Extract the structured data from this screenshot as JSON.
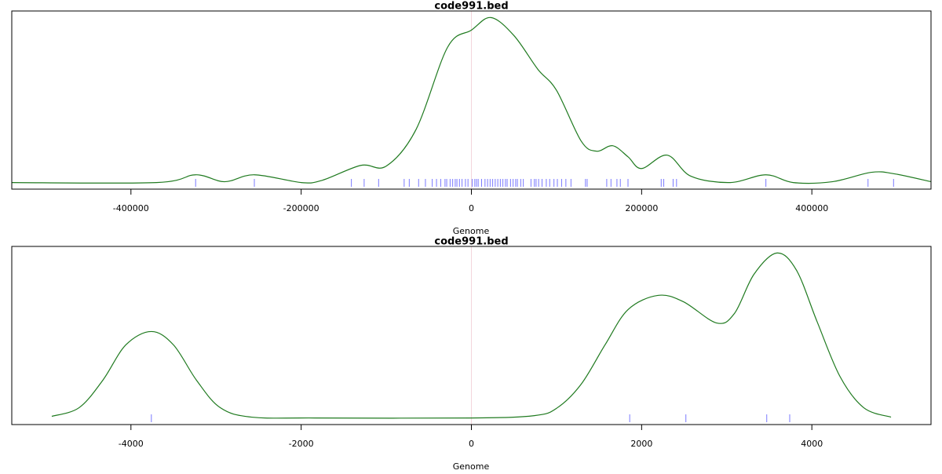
{
  "chart_data": [
    {
      "type": "density",
      "title": "code991.bed",
      "x_label": "Genome",
      "color": "#1f7a1f",
      "rug_color": "#7a7aff",
      "vline": 0,
      "xlim": [
        -540000,
        540000
      ],
      "ylim": [
        -0.04,
        1.04
      ],
      "xticks": [
        -400000,
        -200000,
        0,
        200000,
        400000
      ],
      "x": [
        -540000,
        -370000,
        -324000,
        -290000,
        -255000,
        -200000,
        -175000,
        -130000,
        -100000,
        -65000,
        -28000,
        0,
        23000,
        50000,
        78000,
        100000,
        129000,
        147000,
        166000,
        184000,
        200000,
        230000,
        258000,
        304000,
        346000,
        378000,
        424000,
        470000,
        498000,
        540000
      ],
      "values": [
        0,
        0,
        0.047,
        0.005,
        0.047,
        0,
        0.014,
        0.104,
        0.1,
        0.322,
        0.82,
        0.924,
        1,
        0.891,
        0.687,
        0.559,
        0.251,
        0.19,
        0.223,
        0.156,
        0.085,
        0.166,
        0.038,
        0,
        0.047,
        0,
        0.005,
        0.062,
        0.052,
        0.005
      ],
      "rug": [
        -324000,
        -255000,
        -141000,
        -126000,
        -109000,
        -79000,
        -73000,
        -62000,
        -54000,
        -46000,
        -41000,
        -36000,
        -31000,
        -29000,
        -25000,
        -22000,
        -19000,
        -17000,
        -14000,
        -11000,
        -7000,
        -4000,
        1000,
        4000,
        6000,
        8000,
        12000,
        16000,
        19000,
        22000,
        25000,
        28000,
        31000,
        34000,
        37000,
        40000,
        42000,
        46000,
        49000,
        52000,
        54000,
        58000,
        61000,
        70000,
        74000,
        76000,
        79000,
        83000,
        88000,
        92000,
        97000,
        101000,
        106000,
        111000,
        117000,
        134000,
        136000,
        159000,
        164000,
        171000,
        175000,
        184000,
        223000,
        226000,
        237000,
        241000,
        346000,
        466000,
        496000
      ]
    },
    {
      "type": "density",
      "title": "code991.bed",
      "x_label": "Genome",
      "color": "#1f7a1f",
      "rug_color": "#7a7aff",
      "vline": 0,
      "xlim": [
        -5400,
        5400
      ],
      "ylim": [
        -0.04,
        1.04
      ],
      "xticks": [
        -4000,
        -2000,
        0,
        2000,
        4000
      ],
      "x": [
        -4930,
        -4610,
        -4330,
        -4060,
        -3760,
        -3500,
        -3230,
        -2950,
        -2580,
        -1840,
        0,
        740,
        1010,
        1290,
        1570,
        1840,
        2190,
        2490,
        2880,
        3090,
        3320,
        3590,
        3820,
        4060,
        4330,
        4610,
        4930
      ],
      "values": [
        0.01,
        0.062,
        0.229,
        0.443,
        0.524,
        0.443,
        0.229,
        0.062,
        0.005,
        0,
        0,
        0.014,
        0.062,
        0.205,
        0.443,
        0.657,
        0.743,
        0.705,
        0.576,
        0.633,
        0.871,
        1,
        0.895,
        0.586,
        0.252,
        0.062,
        0.005
      ],
      "rug": [
        -3760,
        1860,
        2520,
        3470,
        3740
      ]
    }
  ]
}
